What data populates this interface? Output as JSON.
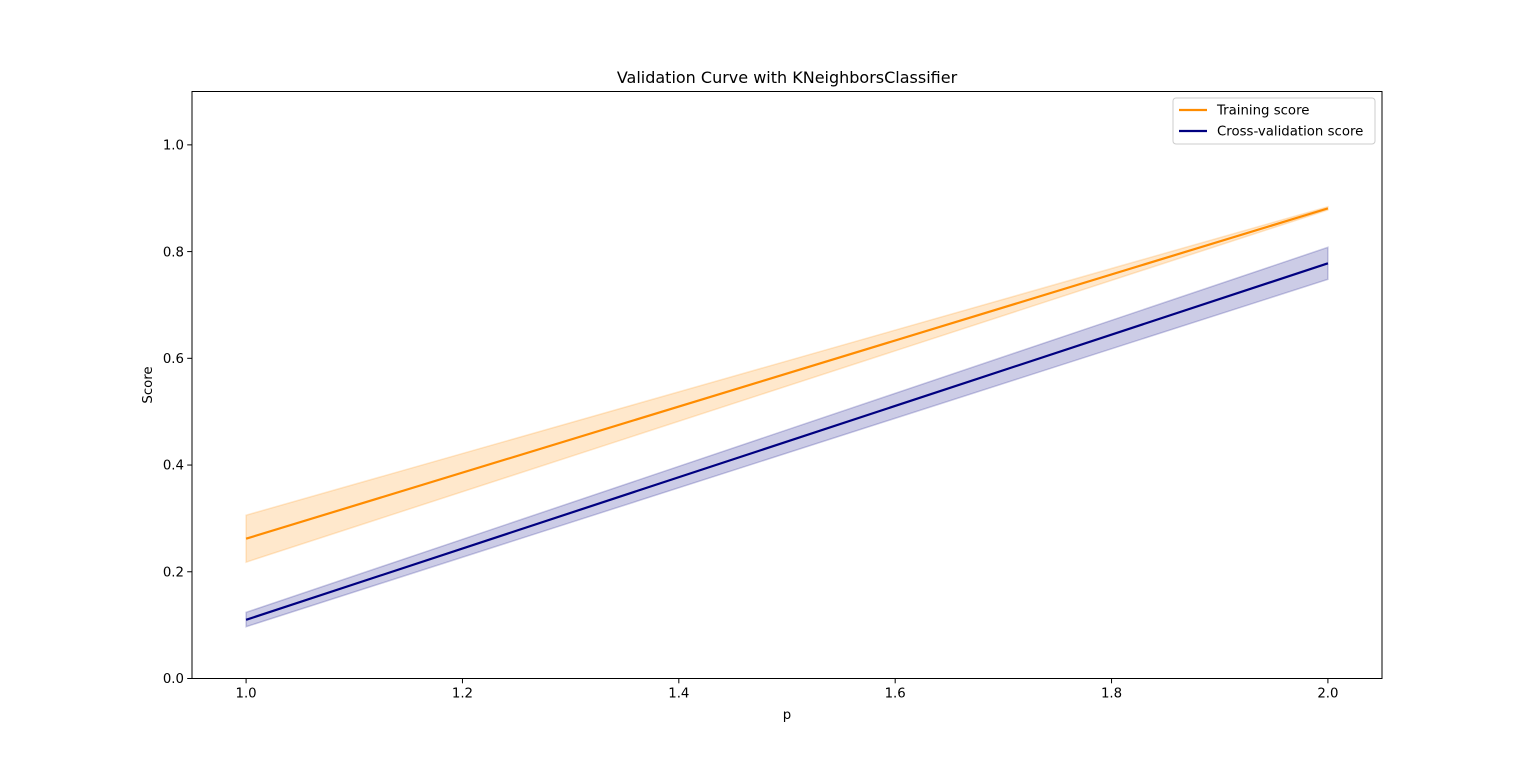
{
  "chart_data": {
    "type": "line",
    "title": "Validation Curve with KNeighborsClassifier",
    "xlabel": "p",
    "ylabel": "Score",
    "xlim": [
      0.95,
      2.05
    ],
    "ylim": [
      0.0,
      1.1
    ],
    "xticks": [
      1.0,
      1.2,
      1.4,
      1.6,
      1.8,
      2.0
    ],
    "xtick_labels": [
      "1.0",
      "1.2",
      "1.4",
      "1.6",
      "1.8",
      "2.0"
    ],
    "yticks": [
      0.0,
      0.2,
      0.4,
      0.6,
      0.8,
      1.0
    ],
    "ytick_labels": [
      "0.0",
      "0.2",
      "0.4",
      "0.6",
      "0.8",
      "1.0"
    ],
    "grid": false,
    "legend_position": "top-right",
    "x": [
      1,
      2
    ],
    "series": [
      {
        "name": "Training score",
        "color": "#ff8c00",
        "mean": [
          0.262,
          0.881
        ],
        "lower": [
          0.218,
          0.878
        ],
        "upper": [
          0.306,
          0.884
        ],
        "band_opacity": 0.2
      },
      {
        "name": "Cross-validation score",
        "color": "#000080",
        "mean": [
          0.11,
          0.778
        ],
        "lower": [
          0.097,
          0.748
        ],
        "upper": [
          0.124,
          0.808
        ],
        "band_opacity": 0.2
      }
    ]
  }
}
